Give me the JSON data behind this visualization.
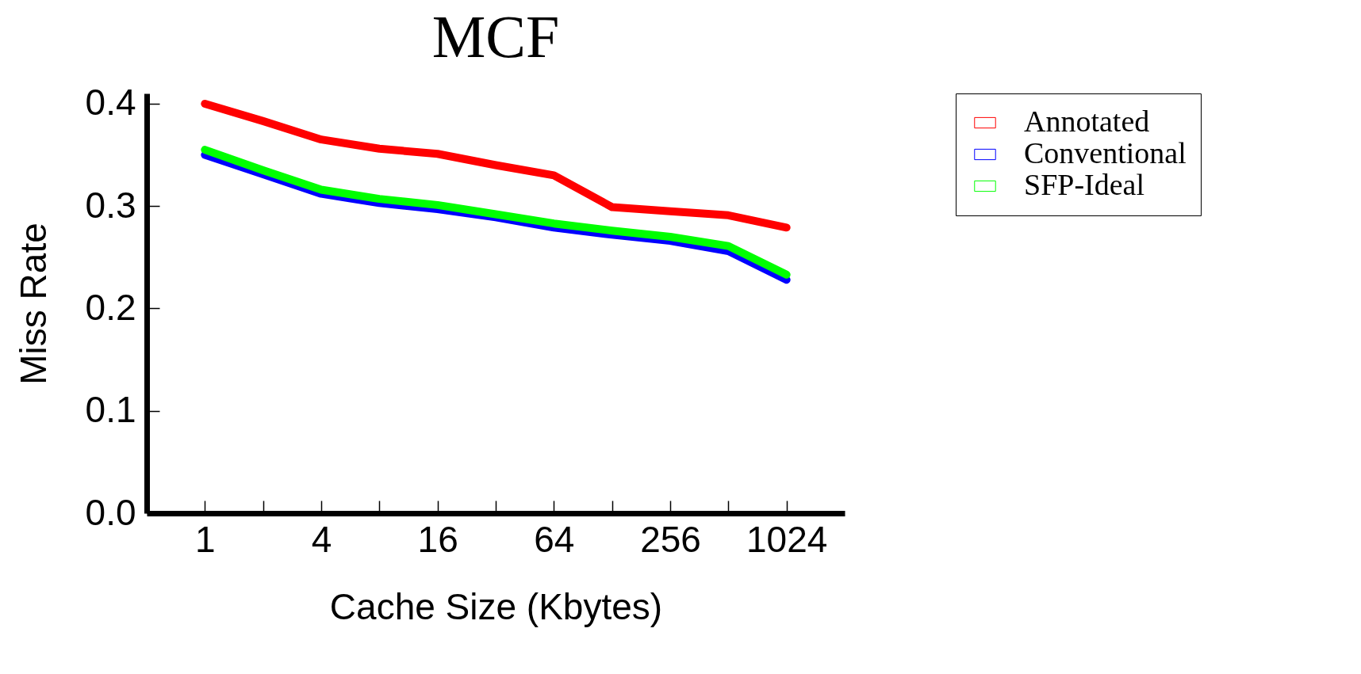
{
  "chart_data": {
    "type": "line",
    "title": "MCF",
    "xlabel": "Cache Size (Kbytes)",
    "ylabel": "Miss Rate",
    "x": [
      1,
      2,
      4,
      8,
      16,
      32,
      64,
      128,
      256,
      512,
      1024
    ],
    "series": [
      {
        "name": "Annotated",
        "color": "#ff0000",
        "values": [
          0.4,
          0.383,
          0.365,
          0.356,
          0.351,
          0.34,
          0.33,
          0.299,
          0.295,
          0.291,
          0.279
        ]
      },
      {
        "name": "Conventional",
        "color": "#0000ff",
        "values": [
          0.35,
          0.331,
          0.312,
          0.303,
          0.297,
          0.289,
          0.279,
          0.272,
          0.266,
          0.256,
          0.228
        ]
      },
      {
        "name": "SFP-Ideal",
        "color": "#00ff00",
        "values": [
          0.355,
          0.335,
          0.316,
          0.307,
          0.301,
          0.292,
          0.283,
          0.276,
          0.27,
          0.261,
          0.233
        ]
      }
    ],
    "log": "x",
    "xlim": [
      0.5,
      2048
    ],
    "xticks": [
      1,
      {
        "value": 2,
        "label": null
      },
      4,
      {
        "value": 8,
        "label": null
      },
      16,
      {
        "value": 32,
        "label": null
      },
      64,
      {
        "value": 128,
        "label": null
      },
      256,
      {
        "value": 512,
        "label": null
      },
      1024
    ],
    "ylim": [
      0,
      0.41
    ],
    "yticks": [
      {
        "value": 0,
        "label": "0.0"
      },
      0.1,
      0.2,
      0.3,
      0.4
    ],
    "legend": "top right",
    "grid": false,
    "marker": "none",
    "line_style": "solid"
  }
}
